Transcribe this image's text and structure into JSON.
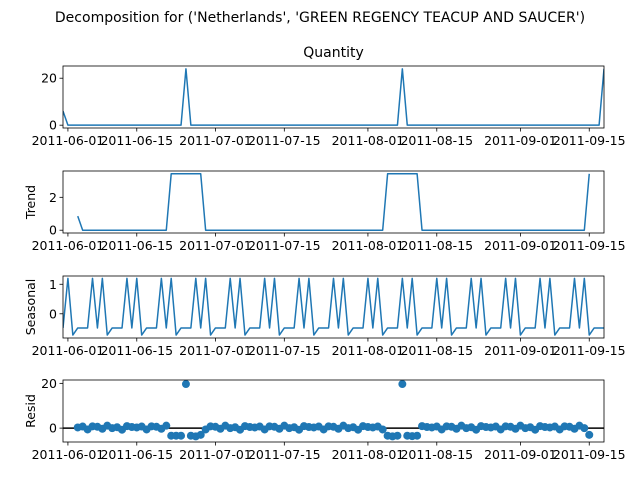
{
  "chart_data": {
    "type": "line",
    "title": "Decomposition for ('Netherlands', 'GREEN REGENCY TEACUP AND SAUCER')",
    "x_start": "2011-05-31",
    "x_end": "2011-09-18",
    "x_tick_labels": [
      "2011-06-01",
      "2011-06-15",
      "2011-07-01",
      "2011-07-15",
      "2011-08-01",
      "2011-08-15",
      "2011-09-01",
      "2011-09-15"
    ],
    "x_tick_dates": [
      "2011-06-01",
      "2011-06-15",
      "2011-07-01",
      "2011-07-15",
      "2011-08-01",
      "2011-08-15",
      "2011-09-01",
      "2011-09-15"
    ],
    "grid": false,
    "panels": [
      {
        "name": "observed",
        "title": "Quantity",
        "ylabel": "",
        "style": "line",
        "ylim": [
          -1.2,
          25.2
        ],
        "yticks": [
          0,
          20
        ],
        "points": [
          [
            "2011-05-31",
            6
          ],
          [
            "2011-06-01",
            0
          ],
          [
            "2011-06-24",
            0
          ],
          [
            "2011-06-25",
            24
          ],
          [
            "2011-06-26",
            0
          ],
          [
            "2011-08-07",
            0
          ],
          [
            "2011-08-08",
            24
          ],
          [
            "2011-08-09",
            0
          ],
          [
            "2011-09-17",
            0
          ],
          [
            "2011-09-18",
            24
          ]
        ]
      },
      {
        "name": "trend",
        "title": "",
        "ylabel": "Trend",
        "style": "line",
        "ylim": [
          -0.17,
          3.6
        ],
        "yticks": [
          0,
          2
        ],
        "points": [
          [
            "2011-06-03",
            0.857
          ],
          [
            "2011-06-04",
            0
          ],
          [
            "2011-06-21",
            0
          ],
          [
            "2011-06-22",
            3.43
          ],
          [
            "2011-06-28",
            3.43
          ],
          [
            "2011-06-29",
            0
          ],
          [
            "2011-08-04",
            0
          ],
          [
            "2011-08-05",
            3.43
          ],
          [
            "2011-08-11",
            3.43
          ],
          [
            "2011-08-12",
            0
          ],
          [
            "2011-09-14",
            0
          ],
          [
            "2011-09-15",
            3.43
          ]
        ]
      },
      {
        "name": "seasonal",
        "title": "",
        "ylabel": "Seasonal",
        "style": "line",
        "ylim": [
          -0.82,
          1.28
        ],
        "yticks": [
          0,
          1
        ],
        "period": 7,
        "pattern": [
          -0.48,
          1.2,
          -0.72,
          -0.48,
          -0.48,
          -0.48,
          1.2
        ],
        "pattern_start": "2011-05-31",
        "points_end": "2011-09-18"
      },
      {
        "name": "resid",
        "title": "",
        "ylabel": "Resid",
        "style": "scatter",
        "ylim": [
          -6.2,
          21.5
        ],
        "yticks": [
          0,
          20
        ],
        "zero_line": true,
        "default_value": 0.3,
        "start": "2011-06-03",
        "end": "2011-09-15",
        "overrides": [
          [
            "2011-06-22",
            -3.4
          ],
          [
            "2011-06-23",
            -3.4
          ],
          [
            "2011-06-24",
            -3.4
          ],
          [
            "2011-06-25",
            19.7
          ],
          [
            "2011-06-26",
            -3.4
          ],
          [
            "2011-06-27",
            -3.7
          ],
          [
            "2011-06-28",
            -3.0
          ],
          [
            "2011-08-05",
            -3.4
          ],
          [
            "2011-08-06",
            -3.7
          ],
          [
            "2011-08-07",
            -3.4
          ],
          [
            "2011-08-08",
            19.7
          ],
          [
            "2011-08-09",
            -3.4
          ],
          [
            "2011-08-10",
            -3.6
          ],
          [
            "2011-08-11",
            -3.4
          ],
          [
            "2011-09-15",
            -3.0
          ]
        ],
        "wobble": [
          0.0,
          0.4,
          -0.9,
          0.5,
          0.3,
          -0.6,
          0.8,
          -0.3,
          0.1,
          -1.0,
          0.6,
          0.2
        ]
      }
    ]
  },
  "colors": {
    "line": "#1f77b4",
    "axis": "#000000",
    "zero_line": "#000000"
  }
}
